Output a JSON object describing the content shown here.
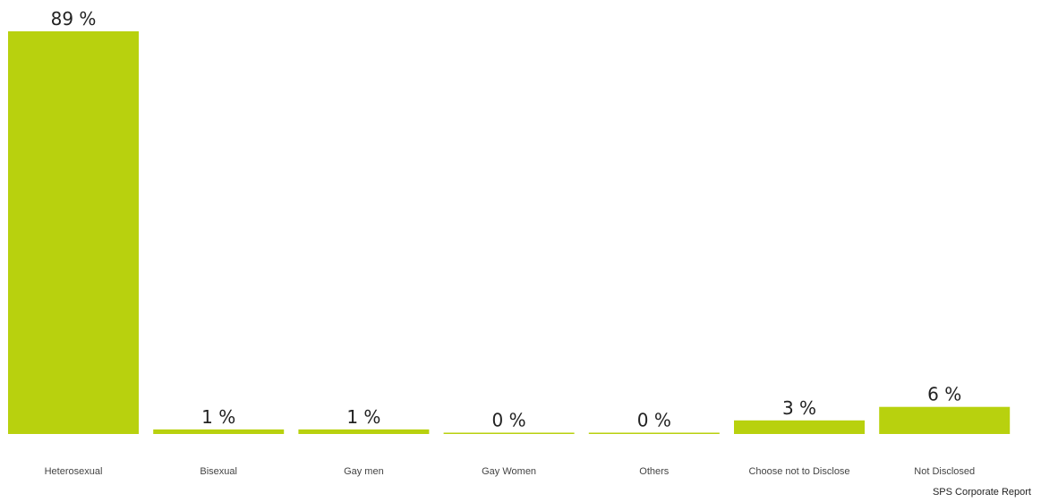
{
  "chart_data": {
    "type": "bar",
    "categories": [
      "Heterosexual",
      "Bisexual",
      "Gay men",
      "Gay Women",
      "Others",
      "Choose not to Disclose",
      "Not Disclosed"
    ],
    "values": [
      89,
      1,
      1,
      0,
      0,
      3,
      6
    ],
    "value_labels": [
      "89 %",
      "1 %",
      "1 %",
      "0 %",
      "0 %",
      "3 %",
      "6 %"
    ],
    "value_unit": "%",
    "title": "",
    "xlabel": "",
    "ylabel": "",
    "ylim": [
      0,
      89
    ],
    "grid": false,
    "legend": "none",
    "bar_color": "#b8d10e"
  },
  "source": "SPS Corporate Report"
}
